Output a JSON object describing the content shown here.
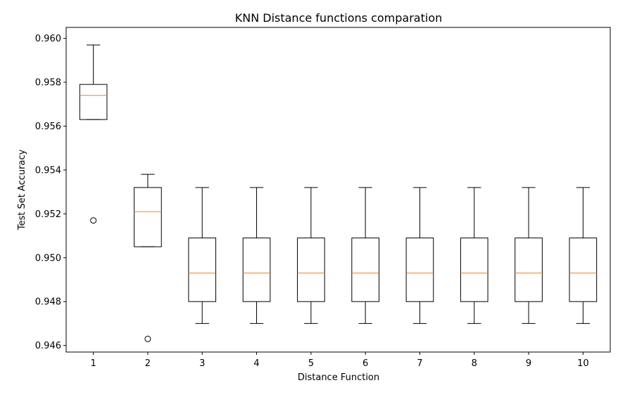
{
  "chart_data": {
    "type": "boxplot",
    "title": "KNN Distance functions comparation",
    "xlabel": "Distance Function",
    "ylabel": "Test Set Accuracy",
    "categories": [
      "1",
      "2",
      "3",
      "4",
      "5",
      "6",
      "7",
      "8",
      "9",
      "10"
    ],
    "ylim": [
      0.9457,
      0.9605
    ],
    "yticks": [
      0.946,
      0.948,
      0.95,
      0.952,
      0.954,
      0.956,
      0.958,
      0.96
    ],
    "ytick_labels": [
      "0.946",
      "0.948",
      "0.950",
      "0.952",
      "0.954",
      "0.956",
      "0.958",
      "0.960"
    ],
    "grid": false,
    "box_color": "#000000",
    "median_color": "#ff7f0e",
    "boxes": [
      {
        "label": "1",
        "whisker_low": 0.9563,
        "q1": 0.9563,
        "median": 0.9574,
        "q3": 0.9579,
        "whisker_high": 0.9597,
        "outliers": [
          0.9517
        ]
      },
      {
        "label": "2",
        "whisker_low": 0.9505,
        "q1": 0.9505,
        "median": 0.9521,
        "q3": 0.9532,
        "whisker_high": 0.9538,
        "outliers": [
          0.9463
        ]
      },
      {
        "label": "3",
        "whisker_low": 0.947,
        "q1": 0.948,
        "median": 0.9493,
        "q3": 0.9509,
        "whisker_high": 0.9532,
        "outliers": []
      },
      {
        "label": "4",
        "whisker_low": 0.947,
        "q1": 0.948,
        "median": 0.9493,
        "q3": 0.9509,
        "whisker_high": 0.9532,
        "outliers": []
      },
      {
        "label": "5",
        "whisker_low": 0.947,
        "q1": 0.948,
        "median": 0.9493,
        "q3": 0.9509,
        "whisker_high": 0.9532,
        "outliers": []
      },
      {
        "label": "6",
        "whisker_low": 0.947,
        "q1": 0.948,
        "median": 0.9493,
        "q3": 0.9509,
        "whisker_high": 0.9532,
        "outliers": []
      },
      {
        "label": "7",
        "whisker_low": 0.947,
        "q1": 0.948,
        "median": 0.9493,
        "q3": 0.9509,
        "whisker_high": 0.9532,
        "outliers": []
      },
      {
        "label": "8",
        "whisker_low": 0.947,
        "q1": 0.948,
        "median": 0.9493,
        "q3": 0.9509,
        "whisker_high": 0.9532,
        "outliers": []
      },
      {
        "label": "9",
        "whisker_low": 0.947,
        "q1": 0.948,
        "median": 0.9493,
        "q3": 0.9509,
        "whisker_high": 0.9532,
        "outliers": []
      },
      {
        "label": "10",
        "whisker_low": 0.947,
        "q1": 0.948,
        "median": 0.9493,
        "q3": 0.9509,
        "whisker_high": 0.9532,
        "outliers": []
      }
    ]
  }
}
